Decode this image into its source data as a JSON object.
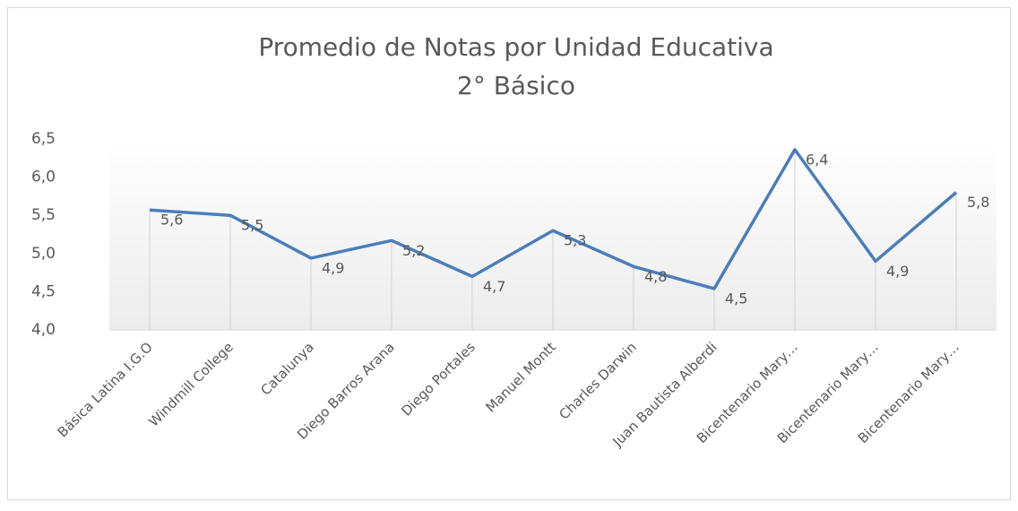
{
  "chart_data": {
    "type": "line",
    "title": "Promedio de Notas por Unidad Educativa",
    "subtitle": "2° Básico",
    "categories": [
      "Básica Latina I.G.O",
      "Windmill College",
      "Catalunya",
      "Diego Barros Arana",
      "Diego Portales",
      "Manuel Montt",
      "Charles Darwin",
      "Juan Bautista Alberdi",
      "Bicentenario Mary…",
      "Bicentenario Mary…",
      "Bicentenario Mary…"
    ],
    "series": [
      {
        "color": "#4a7ebb",
        "values": [
          5.57,
          5.5,
          4.94,
          5.17,
          4.7,
          5.3,
          4.83,
          4.54,
          6.36,
          4.9,
          5.8
        ],
        "value_labels": [
          "5,6",
          "5,5",
          "4,9",
          "5,2",
          "4,7",
          "5,3",
          "4,8",
          "4,5",
          "6,4",
          "4,9",
          "5,8"
        ]
      }
    ],
    "ylim": [
      4,
      6.5
    ],
    "yticks": [
      {
        "value": 4,
        "label": "4,0"
      },
      {
        "value": 4.5,
        "label": "4,5"
      },
      {
        "value": 5,
        "label": "5,0"
      },
      {
        "value": 5.5,
        "label": "5,5"
      },
      {
        "value": 6,
        "label": "6,0"
      },
      {
        "value": 6.5,
        "label": "6,5"
      }
    ],
    "drop_lines": true
  }
}
